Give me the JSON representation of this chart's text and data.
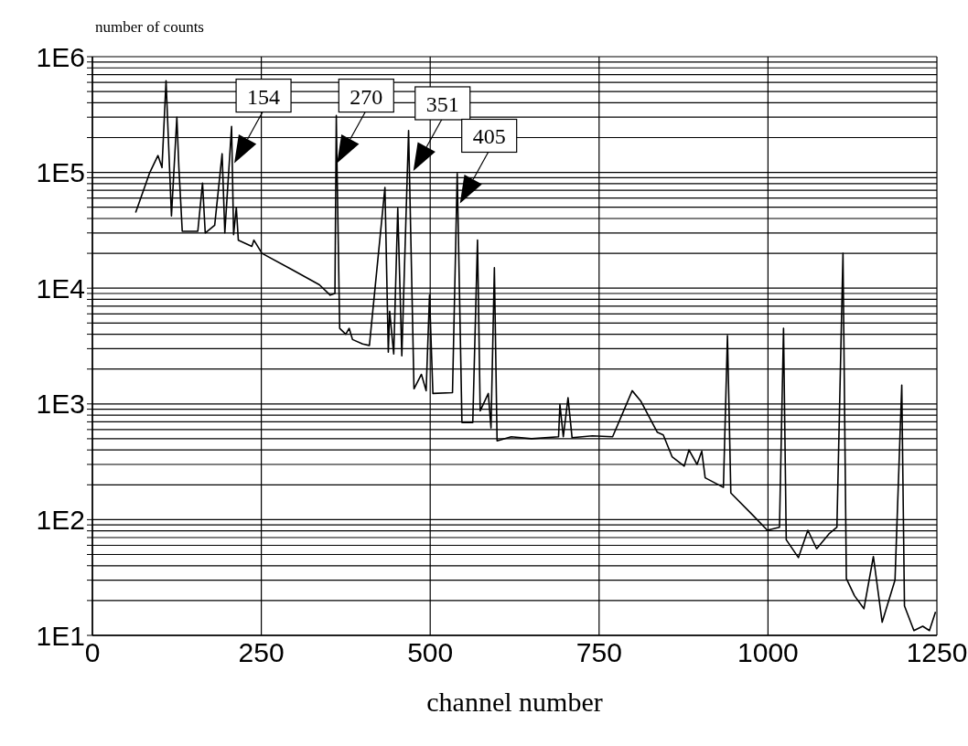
{
  "chart_data": {
    "type": "line",
    "xlabel": "channel number",
    "ylabel": "number of counts",
    "xlim": [
      0,
      1250
    ],
    "xticks": [
      0,
      250,
      500,
      750,
      1000,
      1250
    ],
    "ylim": [
      10,
      1000000
    ],
    "log": "y",
    "grid": true,
    "yticks": [
      {
        "value": 10,
        "label": "1E1"
      },
      {
        "value": 20,
        "label": null
      },
      {
        "value": 30,
        "label": null
      },
      {
        "value": 40,
        "label": null
      },
      {
        "value": 50,
        "label": null
      },
      {
        "value": 60,
        "label": null
      },
      {
        "value": 70,
        "label": null
      },
      {
        "value": 80,
        "label": null
      },
      {
        "value": 90,
        "label": null
      },
      {
        "value": 100,
        "label": "1E2"
      },
      {
        "value": 200,
        "label": null
      },
      {
        "value": 300,
        "label": null
      },
      {
        "value": 400,
        "label": null
      },
      {
        "value": 500,
        "label": null
      },
      {
        "value": 600,
        "label": null
      },
      {
        "value": 700,
        "label": null
      },
      {
        "value": 800,
        "label": null
      },
      {
        "value": 900,
        "label": null
      },
      {
        "value": 1000,
        "label": "1E3"
      },
      {
        "value": 2000,
        "label": null
      },
      {
        "value": 3000,
        "label": null
      },
      {
        "value": 4000,
        "label": null
      },
      {
        "value": 5000,
        "label": null
      },
      {
        "value": 6000,
        "label": null
      },
      {
        "value": 7000,
        "label": null
      },
      {
        "value": 8000,
        "label": null
      },
      {
        "value": 9000,
        "label": null
      },
      {
        "value": 10000,
        "label": "1E4"
      },
      {
        "value": 20000,
        "label": null
      },
      {
        "value": 30000,
        "label": null
      },
      {
        "value": 40000,
        "label": null
      },
      {
        "value": 50000,
        "label": null
      },
      {
        "value": 60000,
        "label": null
      },
      {
        "value": 70000,
        "label": null
      },
      {
        "value": 80000,
        "label": null
      },
      {
        "value": 90000,
        "label": null
      },
      {
        "value": 100000,
        "label": "1E5"
      },
      {
        "value": 200000,
        "label": null
      },
      {
        "value": 300000,
        "label": null
      },
      {
        "value": 400000,
        "label": null
      },
      {
        "value": 500000,
        "label": null
      },
      {
        "value": 600000,
        "label": null
      },
      {
        "value": 700000,
        "label": null
      },
      {
        "value": 800000,
        "label": null
      },
      {
        "value": 900000,
        "label": null
      },
      {
        "value": 1000000,
        "label": "1E6"
      }
    ],
    "series": [
      {
        "color": "#000000",
        "x": [
          64,
          85,
          97,
          103,
          109,
          117,
          125,
          128,
          133,
          156,
          163,
          167,
          181,
          192,
          196,
          206,
          209,
          213,
          216,
          236,
          239,
          251,
          295,
          336,
          352,
          359,
          361,
          362,
          366,
          375,
          380,
          385,
          400,
          410,
          433,
          438,
          440,
          446,
          452,
          458,
          468,
          476,
          487,
          494,
          499,
          504,
          533,
          540,
          547,
          563,
          570,
          574,
          586,
          590,
          595,
          599,
          620,
          650,
          690,
          692,
          697,
          704,
          710,
          740,
          770,
          799,
          812,
          836,
          845,
          858,
          876,
          883,
          895,
          902,
          907,
          934,
          940,
          945,
          977,
          999,
          1017,
          1023,
          1027,
          1045,
          1059,
          1072,
          1090,
          1102,
          1111,
          1116,
          1128,
          1142,
          1156,
          1169,
          1188,
          1198,
          1202,
          1216,
          1229,
          1239,
          1248
        ],
        "values": [
          45000,
          100000,
          140000,
          110000,
          620000,
          42000,
          300000,
          110000,
          31000,
          31000,
          81000,
          30000,
          35000,
          145000,
          30000,
          250000,
          29000,
          50000,
          26000,
          23000,
          26000,
          20000,
          14500,
          10700,
          8700,
          9000,
          310000,
          120000,
          4500,
          4000,
          4500,
          3600,
          3300,
          3200,
          74000,
          2800,
          6300,
          2700,
          49000,
          2600,
          230000,
          1350,
          1800,
          1300,
          8700,
          1230,
          1250,
          98000,
          690,
          690,
          26000,
          870,
          1230,
          620,
          15000,
          480,
          520,
          500,
          520,
          990,
          520,
          1130,
          510,
          530,
          520,
          1300,
          1050,
          570,
          540,
          350,
          290,
          400,
          300,
          390,
          230,
          190,
          3900,
          170,
          110,
          81,
          86,
          4500,
          67,
          47,
          81,
          56,
          75,
          86,
          20000,
          31,
          22,
          17,
          48,
          13,
          30,
          1450,
          18,
          11,
          12,
          11,
          16
        ]
      }
    ],
    "annotations": [
      {
        "text": "154",
        "x": 210,
        "y": 120000
      },
      {
        "text": "270",
        "x": 362,
        "y": 120000
      },
      {
        "text": "351",
        "x": 475,
        "y": 103000
      },
      {
        "text": "405",
        "x": 544,
        "y": 54000
      }
    ]
  }
}
